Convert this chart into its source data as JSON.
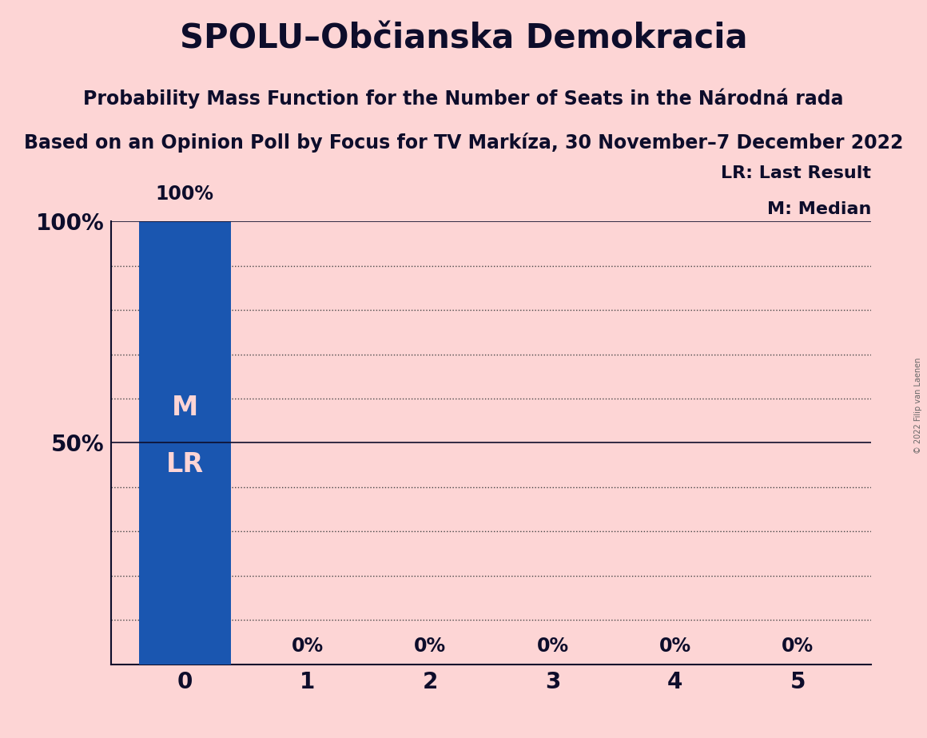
{
  "title": "SPOLU–Občianska Demokracia",
  "subtitle1": "Probability Mass Function for the Number of Seats in the Národná rada",
  "subtitle2": "Based on an Opinion Poll by Focus for TV Markíza, 30 November–7 December 2022",
  "copyright": "© 2022 Filip van Laenen",
  "x_values": [
    0,
    1,
    2,
    3,
    4,
    5
  ],
  "y_values": [
    1.0,
    0.0,
    0.0,
    0.0,
    0.0,
    0.0
  ],
  "bar_color": "#1a56b0",
  "background_color": "#fdd5d5",
  "bar_labels": [
    "100%",
    "0%",
    "0%",
    "0%",
    "0%",
    "0%"
  ],
  "bar_label_color_inside": "#fdd5d5",
  "bar_label_color_outside": "#0d0d2b",
  "ytick_values": [
    0.0,
    0.1,
    0.2,
    0.3,
    0.4,
    0.5,
    0.6,
    0.7,
    0.8,
    0.9,
    1.0
  ],
  "yaxis_labels": [
    "100%",
    "50%"
  ],
  "yaxis_values": [
    1.0,
    0.5
  ],
  "median_seat": 0,
  "last_result_seat": 0,
  "legend_lr": "LR: Last Result",
  "legend_m": "M: Median",
  "title_fontsize": 30,
  "subtitle1_fontsize": 17,
  "subtitle2_fontsize": 17,
  "bar_label_fontsize": 17,
  "inner_label_fontsize": 24,
  "tick_fontsize": 20,
  "legend_fontsize": 16,
  "text_color": "#0d0d2b",
  "grid_color": "#444444",
  "spine_color": "#0d0d2b"
}
